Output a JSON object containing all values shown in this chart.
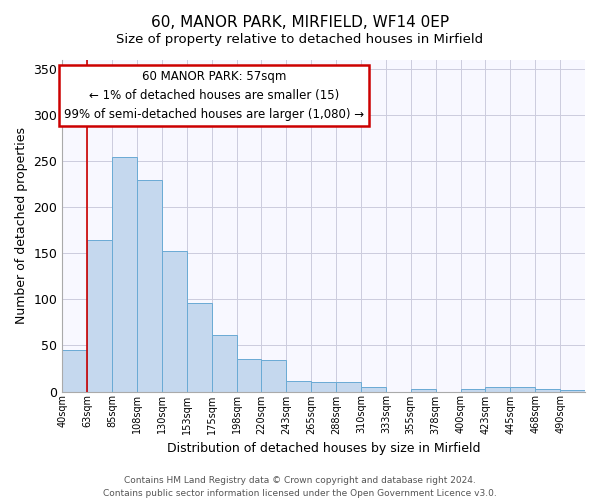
{
  "title": "60, MANOR PARK, MIRFIELD, WF14 0EP",
  "subtitle": "Size of property relative to detached houses in Mirfield",
  "xlabel": "Distribution of detached houses by size in Mirfield",
  "ylabel": "Number of detached properties",
  "bin_labels": [
    "40sqm",
    "63sqm",
    "85sqm",
    "108sqm",
    "130sqm",
    "153sqm",
    "175sqm",
    "198sqm",
    "220sqm",
    "243sqm",
    "265sqm",
    "288sqm",
    "310sqm",
    "333sqm",
    "355sqm",
    "378sqm",
    "400sqm",
    "423sqm",
    "445sqm",
    "468sqm",
    "490sqm"
  ],
  "bar_heights": [
    45,
    165,
    255,
    230,
    153,
    96,
    61,
    35,
    34,
    11,
    10,
    10,
    5,
    0,
    3,
    0,
    3,
    5,
    5,
    3,
    2
  ],
  "bar_color": "#c5d8ee",
  "bar_edge_color": "#6aaad4",
  "marker_bin": 1,
  "marker_color": "#cc0000",
  "ylim": [
    0,
    360
  ],
  "yticks": [
    0,
    50,
    100,
    150,
    200,
    250,
    300,
    350
  ],
  "annotation_title": "60 MANOR PARK: 57sqm",
  "annotation_line1": "← 1% of detached houses are smaller (15)",
  "annotation_line2": "99% of semi-detached houses are larger (1,080) →",
  "annotation_box_color": "#ffffff",
  "annotation_box_edge": "#cc0000",
  "footer1": "Contains HM Land Registry data © Crown copyright and database right 2024.",
  "footer2": "Contains public sector information licensed under the Open Government Licence v3.0."
}
